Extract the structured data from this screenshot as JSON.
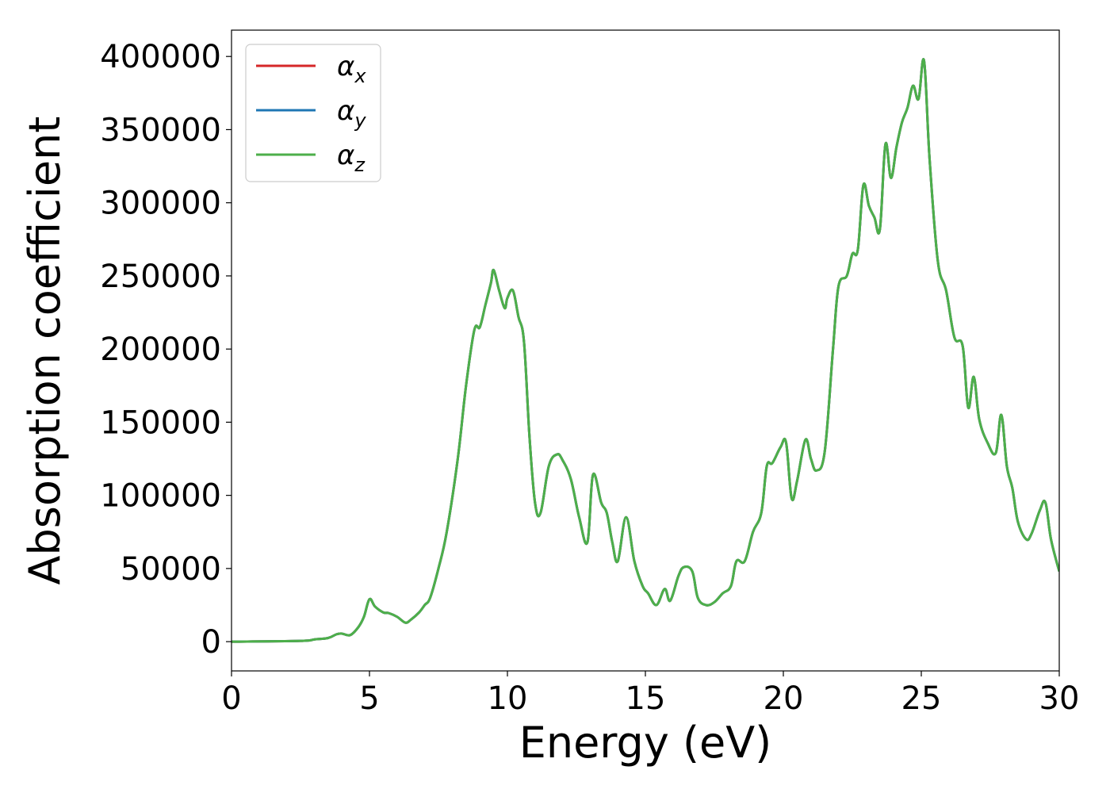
{
  "chart_data": {
    "type": "line",
    "xlabel": "Energy (eV)",
    "ylabel": "Absorption coefficient",
    "xlim": [
      0,
      30
    ],
    "ylim": [
      -20000,
      418000
    ],
    "xticks": [
      0,
      5,
      10,
      15,
      20,
      25,
      30
    ],
    "yticks": [
      0,
      50000,
      100000,
      150000,
      200000,
      250000,
      300000,
      350000,
      400000
    ],
    "grid": false,
    "legend_position": "top-left",
    "legend": [
      {
        "base": "α",
        "sub": "x"
      },
      {
        "base": "α",
        "sub": "y"
      },
      {
        "base": "α",
        "sub": "z"
      }
    ],
    "series": [
      {
        "name": "αx",
        "color": "#d62728",
        "ref": "shared"
      },
      {
        "name": "αy",
        "color": "#1f77b4",
        "ref": "shared"
      },
      {
        "name": "αz",
        "color": "#4daf4a",
        "ref": "shared"
      }
    ],
    "shared_values": {
      "x": [
        0,
        2.5,
        3.0,
        3.5,
        3.8,
        4.0,
        4.3,
        4.6,
        4.8,
        5.0,
        5.2,
        5.5,
        5.7,
        6.0,
        6.3,
        6.5,
        6.8,
        7.0,
        7.2,
        7.5,
        7.8,
        8.2,
        8.5,
        8.8,
        9.0,
        9.2,
        9.4,
        9.5,
        9.7,
        9.9,
        10.0,
        10.2,
        10.4,
        10.6,
        10.8,
        11.0,
        11.2,
        11.5,
        11.8,
        12.0,
        12.3,
        12.6,
        12.9,
        13.1,
        13.4,
        13.6,
        13.8,
        14.0,
        14.3,
        14.6,
        14.9,
        15.1,
        15.4,
        15.7,
        15.9,
        16.2,
        16.4,
        16.7,
        16.9,
        17.2,
        17.5,
        17.8,
        18.1,
        18.3,
        18.6,
        18.9,
        19.2,
        19.4,
        19.6,
        19.9,
        20.1,
        20.3,
        20.5,
        20.8,
        21.0,
        21.2,
        21.5,
        21.8,
        22.0,
        22.3,
        22.5,
        22.7,
        22.9,
        23.1,
        23.3,
        23.5,
        23.7,
        23.9,
        24.1,
        24.3,
        24.5,
        24.7,
        24.9,
        25.1,
        25.3,
        25.6,
        25.9,
        26.2,
        26.5,
        26.7,
        26.9,
        27.1,
        27.4,
        27.7,
        27.9,
        28.1,
        28.3,
        28.5,
        28.8,
        29.0,
        29.3,
        29.5,
        29.7,
        30.0
      ],
      "y": [
        0,
        500,
        1500,
        2500,
        5000,
        5500,
        4500,
        10000,
        17000,
        29000,
        24000,
        20000,
        19500,
        17000,
        13000,
        15000,
        20000,
        25000,
        30000,
        50000,
        75000,
        125000,
        175000,
        213000,
        215000,
        230000,
        245000,
        254000,
        240000,
        228000,
        235000,
        240000,
        222000,
        205000,
        140000,
        95000,
        88000,
        120000,
        128000,
        124000,
        111000,
        85000,
        68000,
        114000,
        95000,
        88000,
        68000,
        55000,
        85000,
        55000,
        38000,
        33000,
        25000,
        36000,
        28000,
        45000,
        51000,
        48000,
        30000,
        25000,
        27000,
        33000,
        38000,
        55000,
        55000,
        75000,
        88000,
        120000,
        122000,
        133000,
        136000,
        98000,
        110000,
        138000,
        125000,
        117000,
        130000,
        200000,
        243000,
        250000,
        265000,
        268000,
        312000,
        298000,
        290000,
        282000,
        340000,
        317000,
        338000,
        355000,
        365000,
        380000,
        371000,
        397000,
        330000,
        260000,
        240000,
        208000,
        202000,
        160000,
        181000,
        152000,
        136000,
        129000,
        155000,
        120000,
        105000,
        82000,
        70000,
        74000,
        90000,
        95000,
        70000,
        48000
      ]
    }
  }
}
